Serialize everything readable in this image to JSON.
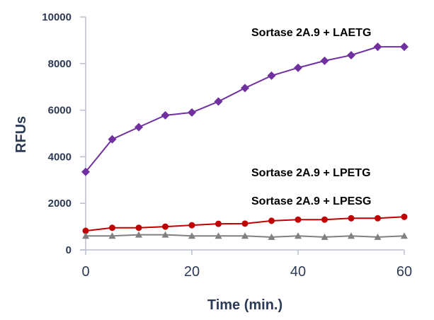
{
  "chart_data": {
    "type": "line",
    "title": "",
    "xlabel": "Time (min.)",
    "ylabel": "RFUs",
    "xlim": [
      0,
      60
    ],
    "ylim": [
      0,
      10000
    ],
    "xticks": [
      0,
      20,
      40,
      60
    ],
    "yticks": [
      0,
      2000,
      4000,
      6000,
      8000,
      10000
    ],
    "grid": false,
    "x": [
      0,
      5,
      10,
      15,
      20,
      25,
      30,
      35,
      40,
      45,
      50,
      55,
      60
    ],
    "series": [
      {
        "name": "Sortase 2A.9 + LAETG",
        "color": "#7030a0",
        "marker": "diamond",
        "values": [
          3350,
          4750,
          5270,
          5780,
          5900,
          6370,
          6950,
          7480,
          7820,
          8120,
          8360,
          8720,
          8720
        ]
      },
      {
        "name": "Sortase 2A.9 + LPETG",
        "color": "#c00000",
        "marker": "circle",
        "values": [
          820,
          950,
          950,
          1000,
          1060,
          1120,
          1130,
          1250,
          1300,
          1300,
          1360,
          1360,
          1420
        ]
      },
      {
        "name": "Sortase 2A.9 + LPESG",
        "color": "#808080",
        "marker": "triangle",
        "values": [
          600,
          600,
          650,
          650,
          600,
          600,
          600,
          550,
          600,
          550,
          600,
          550,
          600
        ]
      }
    ]
  }
}
